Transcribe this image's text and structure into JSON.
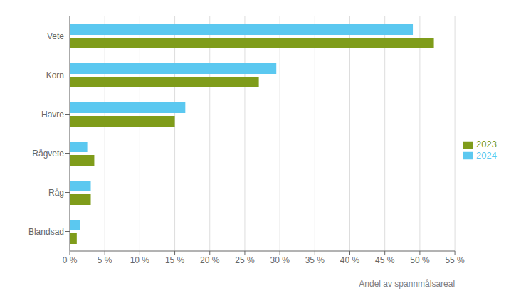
{
  "chart_data": {
    "type": "bar",
    "orientation": "horizontal",
    "categories": [
      "Vete",
      "Korn",
      "Havre",
      "Rågvete",
      "Råg",
      "Blandsad"
    ],
    "series": [
      {
        "name": "2024",
        "color": "#5BC8F0",
        "values": [
          49.0,
          29.5,
          16.5,
          2.5,
          3.0,
          1.5
        ]
      },
      {
        "name": "2023",
        "color": "#7F9C1A",
        "values": [
          52.0,
          27.0,
          15.0,
          3.5,
          3.0,
          1.0
        ]
      }
    ],
    "xlabel": "Andel av spannmålsareal",
    "xlim": [
      0,
      55
    ],
    "xticks": [
      {
        "value": 0,
        "label": "0 %"
      },
      {
        "value": 5,
        "label": "5 %"
      },
      {
        "value": 10,
        "label": "10 %"
      },
      {
        "value": 15,
        "label": "15 %"
      },
      {
        "value": 20,
        "label": "20 %"
      },
      {
        "value": 25,
        "label": "25 %"
      },
      {
        "value": 30,
        "label": "30 %"
      },
      {
        "value": 35,
        "label": "35 %"
      },
      {
        "value": 40,
        "label": "40 %"
      },
      {
        "value": 45,
        "label": "45 %"
      },
      {
        "value": 50,
        "label": "50 %"
      },
      {
        "value": 55,
        "label": "55 %"
      }
    ],
    "grid": true,
    "legend": "right"
  }
}
